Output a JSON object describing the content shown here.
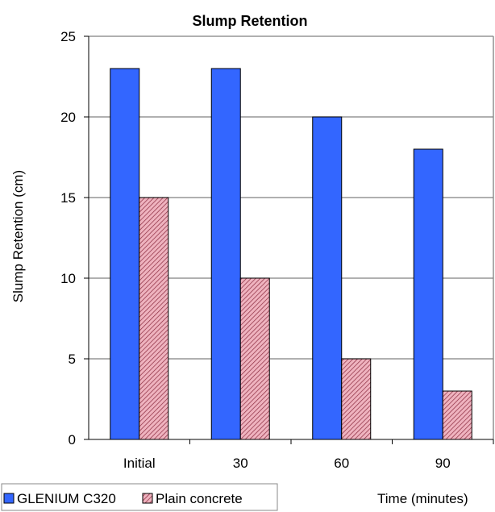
{
  "chart_data": {
    "type": "bar",
    "title": "Slump Retention",
    "xlabel": "Time (minutes)",
    "ylabel": "Slump Retention (cm)",
    "categories": [
      "Initial",
      "30",
      "60",
      "90"
    ],
    "ylim": [
      0,
      25
    ],
    "yticks": [
      0,
      5,
      10,
      15,
      20,
      25
    ],
    "grid": true,
    "legend_position": "bottom-left",
    "series": [
      {
        "name": "GLENIUM C320",
        "values": [
          23,
          23,
          20,
          18
        ],
        "color": "#3366ff",
        "pattern": "solid"
      },
      {
        "name": "Plain concrete",
        "values": [
          15,
          10,
          5,
          3
        ],
        "color": "#e8a0ae",
        "pattern": "diagonal-hatch"
      }
    ]
  }
}
